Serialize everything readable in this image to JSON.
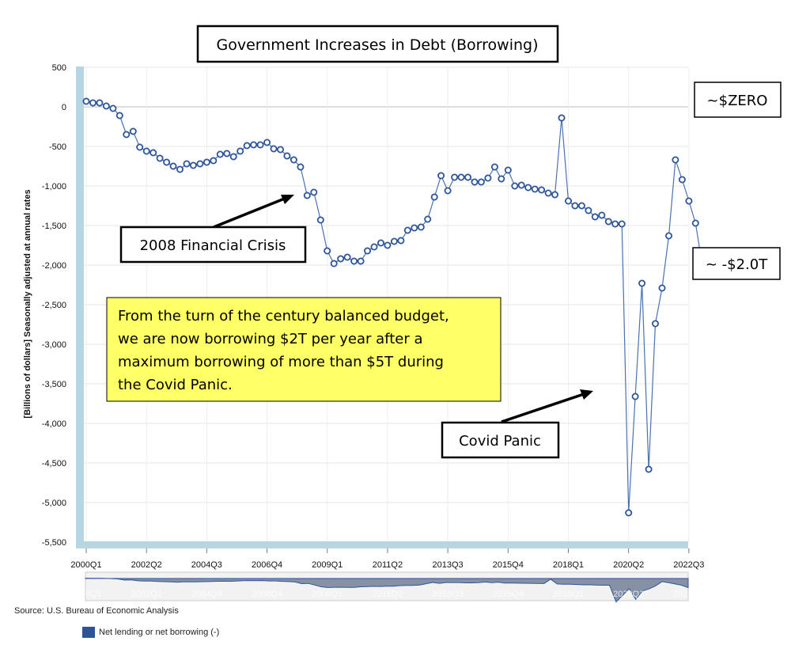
{
  "chart_data": {
    "type": "line",
    "title": "Government Increases in Debt (Borrowing)",
    "ylabel": "[Billions of dollars] Seasonally adjusted at annual rates",
    "xlabel": "",
    "ylim": [
      -5500,
      500
    ],
    "yticks": [
      500,
      0,
      -500,
      -1000,
      -1500,
      -2000,
      -2500,
      -3000,
      -3500,
      -4000,
      -4500,
      -5000,
      -5500
    ],
    "ytick_labels": [
      "500",
      "0",
      "-500",
      "-1,000",
      "-1,500",
      "-2,000",
      "-2,500",
      "-3,000",
      "-3,500",
      "-4,000",
      "-4,500",
      "-5,000",
      "-5,500"
    ],
    "xtick_labels": [
      "2000Q1",
      "2002Q2",
      "2004Q3",
      "2006Q4",
      "2009Q1",
      "2011Q2",
      "2013Q3",
      "2015Q4",
      "2018Q1",
      "2020Q2",
      "2022Q3"
    ],
    "series": [
      {
        "name": "Net lending or net borrowing (-)",
        "color": "#2d5499",
        "start_period": "2000Q1",
        "values": [
          70,
          50,
          50,
          10,
          -20,
          -110,
          -350,
          -310,
          -510,
          -560,
          -580,
          -650,
          -700,
          -750,
          -790,
          -720,
          -740,
          -720,
          -700,
          -680,
          -600,
          -590,
          -630,
          -560,
          -490,
          -480,
          -480,
          -450,
          -530,
          -540,
          -620,
          -670,
          -760,
          -1120,
          -1080,
          -1430,
          -1820,
          -1980,
          -1920,
          -1900,
          -1950,
          -1950,
          -1820,
          -1770,
          -1720,
          -1750,
          -1700,
          -1690,
          -1560,
          -1530,
          -1520,
          -1420,
          -1140,
          -870,
          -1060,
          -890,
          -890,
          -890,
          -950,
          -950,
          -900,
          -760,
          -910,
          -800,
          -1000,
          -990,
          -1020,
          -1040,
          -1050,
          -1090,
          -1110,
          -140,
          -1190,
          -1250,
          -1250,
          -1310,
          -1390,
          -1370,
          -1450,
          -1480,
          -1480,
          -5130,
          -3660,
          -2230,
          -4580,
          -2740,
          -2290,
          -1630,
          -670,
          -920,
          -1190,
          -1470,
          -2000
        ]
      }
    ],
    "grid": true,
    "legend_position": "bottom-left"
  },
  "annotations": {
    "zero_label": "~$ZERO",
    "end_label": "~ -$2.0T",
    "financial_crisis": "2008 Financial Crisis",
    "covid": "Covid Panic",
    "callout_lines": [
      "From the turn of the century balanced budget,",
      "we are now borrowing $2T per year after a",
      "maximum borrowing of more than $5T during",
      "the Covid Panic."
    ]
  },
  "source": "Source: U.S. Bureau of Economic Analysis",
  "legend_label": "Net lending or net borrowing (-)",
  "colors": {
    "line": "#4a72b0",
    "marker_stroke": "#2d5499",
    "axis_band": "#b8d6e2",
    "callout_bg": "#ffff66",
    "navigator_fill": "#8791a6"
  }
}
